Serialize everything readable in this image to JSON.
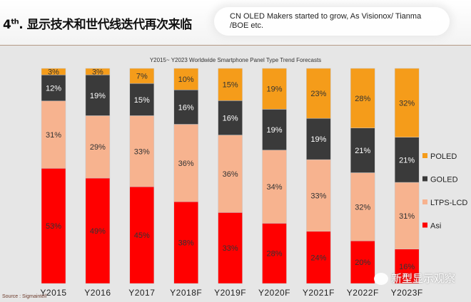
{
  "header": {
    "title_prefix": "4",
    "title_sup": "th",
    "title_text": ". 显示技术和世代线迭代再次来临"
  },
  "chart_data": {
    "type": "bar",
    "stacked": true,
    "title": "Y2015~ Y2023 Worldwide Smartphone Panel Type Trend Forecasts",
    "categories": [
      "Y2015",
      "Y2016",
      "Y2017",
      "Y2018F",
      "Y2019F",
      "Y2020F",
      "Y2021F",
      "Y2022F",
      "Y2023F"
    ],
    "unit": "%",
    "series": [
      {
        "name": "Asi",
        "color": "#ff0000",
        "values": [
          53,
          49,
          45,
          38,
          33,
          28,
          24,
          20,
          16
        ]
      },
      {
        "name": "LTPS-LCD",
        "color": "#f7b38f",
        "values": [
          31,
          29,
          33,
          36,
          36,
          34,
          33,
          32,
          31
        ]
      },
      {
        "name": "GOLED",
        "color": "#3a3a3a",
        "values": [
          12,
          19,
          15,
          16,
          16,
          19,
          19,
          21,
          21
        ]
      },
      {
        "name": "POLED",
        "color": "#f59c1a",
        "values": [
          3,
          3,
          7,
          10,
          15,
          19,
          23,
          28,
          32
        ]
      }
    ],
    "legend_position": "right",
    "legend_order": [
      "POLED",
      "GOLED",
      "LTPS-LCD",
      "Asi"
    ],
    "annotation": "CN OLED Makers started to grow, As Visionox/ Tianma /BOE etc."
  },
  "source": "Source : Sigmaintell",
  "watermark": "新型显示观察"
}
